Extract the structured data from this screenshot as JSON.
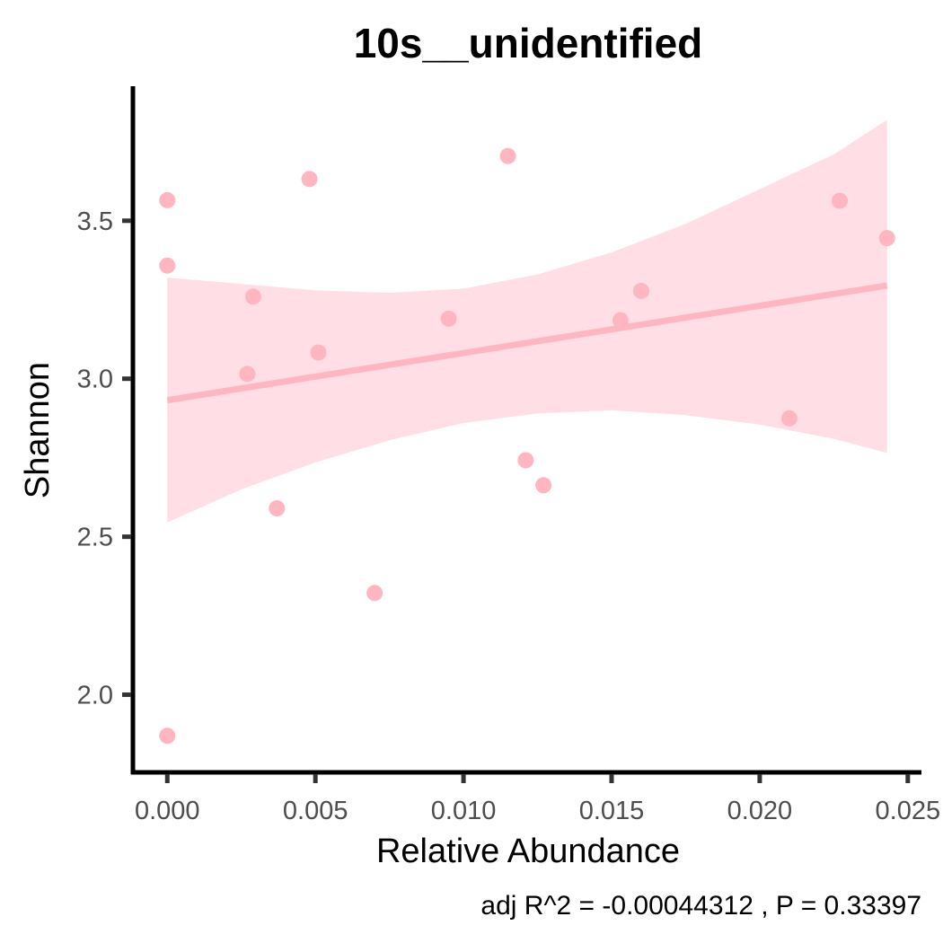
{
  "chart_data": {
    "type": "scatter",
    "title": "10s__unidentified",
    "xlabel": "Relative Abundance",
    "ylabel": "Shannon",
    "caption": "adj R^2 =  -0.00044312 , P = 0.33397",
    "xlim": [
      -0.0011,
      0.0254
    ],
    "ylim": [
      1.76,
      3.92
    ],
    "x_ticks": [
      0.0,
      0.005,
      0.01,
      0.015,
      0.02,
      0.025
    ],
    "x_tick_labels": [
      "0.000",
      "0.005",
      "0.010",
      "0.015",
      "0.020",
      "0.025"
    ],
    "y_ticks": [
      2.0,
      2.5,
      3.0,
      3.5
    ],
    "y_tick_labels": [
      "2.0",
      "2.5",
      "3.0",
      "3.5"
    ],
    "grid": false,
    "colors": {
      "points": "#ffb6c1",
      "fit_line": "#ffb6c1",
      "ribbon": "#ffc0cb"
    },
    "points": [
      {
        "x": 0.0,
        "y": 3.565
      },
      {
        "x": 0.0,
        "y": 3.358
      },
      {
        "x": 0.0,
        "y": 1.87
      },
      {
        "x": 0.0027,
        "y": 3.015
      },
      {
        "x": 0.0029,
        "y": 3.26
      },
      {
        "x": 0.0037,
        "y": 2.59
      },
      {
        "x": 0.0048,
        "y": 3.632
      },
      {
        "x": 0.0051,
        "y": 3.083
      },
      {
        "x": 0.007,
        "y": 2.322
      },
      {
        "x": 0.0095,
        "y": 3.19
      },
      {
        "x": 0.0115,
        "y": 3.705
      },
      {
        "x": 0.0121,
        "y": 2.742
      },
      {
        "x": 0.0127,
        "y": 2.663
      },
      {
        "x": 0.0153,
        "y": 3.185
      },
      {
        "x": 0.016,
        "y": 3.278
      },
      {
        "x": 0.021,
        "y": 2.875
      },
      {
        "x": 0.0227,
        "y": 3.563
      },
      {
        "x": 0.0243,
        "y": 3.445
      }
    ],
    "fit": {
      "x": [
        0.0,
        0.0243
      ],
      "y": [
        2.932,
        3.295
      ]
    },
    "ribbon": {
      "x": [
        0.0,
        0.0025,
        0.005,
        0.0075,
        0.01,
        0.0125,
        0.015,
        0.0175,
        0.02,
        0.0225,
        0.0243
      ],
      "upper": [
        3.32,
        3.3,
        3.28,
        3.272,
        3.285,
        3.33,
        3.4,
        3.49,
        3.6,
        3.71,
        3.82
      ],
      "lower": [
        2.545,
        2.65,
        2.735,
        2.805,
        2.86,
        2.89,
        2.9,
        2.885,
        2.855,
        2.81,
        2.765
      ]
    }
  }
}
